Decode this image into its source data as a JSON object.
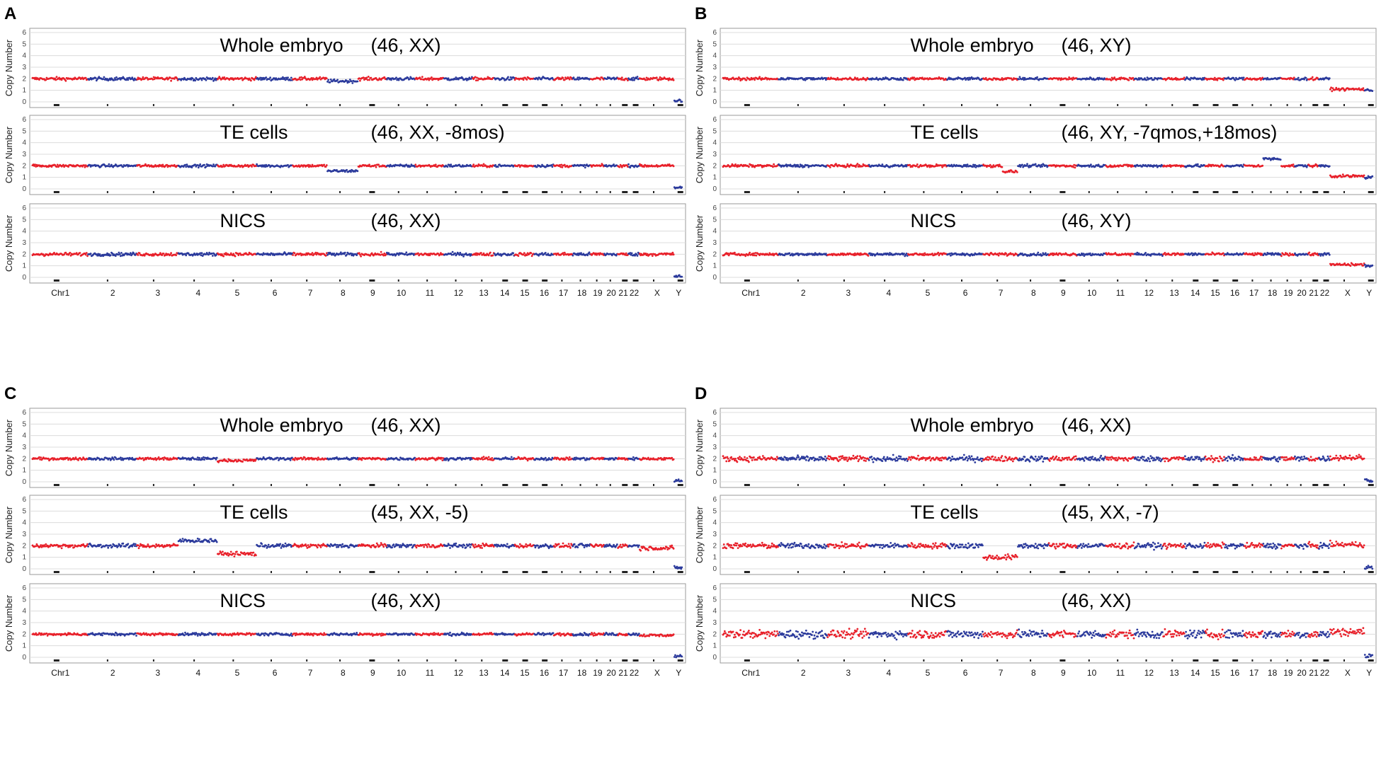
{
  "figure": {
    "panel_labels": [
      "A",
      "B",
      "C",
      "D"
    ],
    "colors": {
      "odd_chromosomes": "#e8202a",
      "even_chromosomes": "#2b3a9c",
      "grid": "#dcdcdc",
      "frame": "#999999"
    }
  },
  "chart_data": [
    {
      "panel": "A",
      "type": "scatter",
      "ylabel": "Copy Number",
      "ylim": [
        0,
        6
      ],
      "yticks": [
        "0",
        "1",
        "2",
        "3",
        "4",
        "5",
        "6"
      ],
      "chromosome_labels": [
        "Chr1",
        "2",
        "3",
        "4",
        "5",
        "6",
        "7",
        "8",
        "9",
        "10",
        "11",
        "12",
        "13",
        "14",
        "15",
        "16",
        "17",
        "18",
        "19",
        "20",
        "21",
        "22",
        "X",
        "Y"
      ],
      "plots": [
        {
          "title": "Whole embryo",
          "karyotype": "(46, XX)",
          "noise": 0.12,
          "segments": [
            {
              "chr": "8",
              "copy_number": 1.8
            },
            {
              "chr": "X",
              "copy_number": 2.0
            },
            {
              "chr": "Y",
              "copy_number": 0.1
            }
          ]
        },
        {
          "title": "TE cells",
          "karyotype": "(46, XX, -8mos)",
          "noise": 0.1,
          "segments": [
            {
              "chr": "8",
              "copy_number": 1.55
            },
            {
              "chr": "X",
              "copy_number": 2.0
            },
            {
              "chr": "Y",
              "copy_number": 0.1
            }
          ]
        },
        {
          "title": "NICS",
          "karyotype": "(46, XX)",
          "noise": 0.12,
          "segments": [
            {
              "chr": "X",
              "copy_number": 2.0
            },
            {
              "chr": "Y",
              "copy_number": 0.1
            }
          ]
        }
      ]
    },
    {
      "panel": "B",
      "type": "scatter",
      "ylabel": "Copy Number",
      "ylim": [
        0,
        6
      ],
      "yticks": [
        "0",
        "1",
        "2",
        "3",
        "4",
        "5",
        "6"
      ],
      "chromosome_labels": [
        "Chr1",
        "2",
        "3",
        "4",
        "5",
        "6",
        "7",
        "8",
        "9",
        "10",
        "11",
        "12",
        "13",
        "14",
        "15",
        "16",
        "17",
        "18",
        "19",
        "20",
        "21",
        "22",
        "X",
        "Y"
      ],
      "plots": [
        {
          "title": "Whole embryo",
          "karyotype": "(46, XY)",
          "noise": 0.1,
          "segments": [
            {
              "chr": "X",
              "copy_number": 1.1
            },
            {
              "chr": "Y",
              "copy_number": 1.0
            }
          ]
        },
        {
          "title": "TE cells",
          "karyotype": "(46, XY, -7qmos,+18mos)",
          "noise": 0.1,
          "segments": [
            {
              "chr": "7q",
              "copy_number": 1.5
            },
            {
              "chr": "18",
              "copy_number": 2.6
            },
            {
              "chr": "X",
              "copy_number": 1.1
            },
            {
              "chr": "Y",
              "copy_number": 1.0
            }
          ]
        },
        {
          "title": "NICS",
          "karyotype": "(46, XY)",
          "noise": 0.1,
          "segments": [
            {
              "chr": "X",
              "copy_number": 1.1
            },
            {
              "chr": "Y",
              "copy_number": 1.0
            }
          ]
        }
      ]
    },
    {
      "panel": "C",
      "type": "scatter",
      "ylabel": "Copy Number",
      "ylim": [
        0,
        6
      ],
      "yticks": [
        "0",
        "1",
        "2",
        "3",
        "4",
        "5",
        "6"
      ],
      "chromosome_labels": [
        "Chr1",
        "2",
        "3",
        "4",
        "5",
        "6",
        "7",
        "8",
        "9",
        "10",
        "11",
        "12",
        "13",
        "14",
        "15",
        "16",
        "17",
        "18",
        "19",
        "20",
        "21",
        "22",
        "X",
        "Y"
      ],
      "plots": [
        {
          "title": "Whole embryo",
          "karyotype": "(46, XX)",
          "noise": 0.1,
          "segments": [
            {
              "chr": "5",
              "copy_number": 1.85
            },
            {
              "chr": "X",
              "copy_number": 2.0
            },
            {
              "chr": "Y",
              "copy_number": 0.1
            }
          ]
        },
        {
          "title": "TE cells",
          "karyotype": "(45, XX, -5)",
          "noise": 0.15,
          "segments": [
            {
              "chr": "4",
              "copy_number": 2.45
            },
            {
              "chr": "5",
              "copy_number": 1.3
            },
            {
              "chr": "X",
              "copy_number": 1.8
            },
            {
              "chr": "Y",
              "copy_number": 0.1
            }
          ]
        },
        {
          "title": "NICS",
          "karyotype": "(46, XX)",
          "noise": 0.1,
          "segments": [
            {
              "chr": "X",
              "copy_number": 1.9
            },
            {
              "chr": "Y",
              "copy_number": 0.1
            }
          ]
        }
      ]
    },
    {
      "panel": "D",
      "type": "scatter",
      "ylabel": "Copy Number",
      "ylim": [
        0,
        6
      ],
      "yticks": [
        "0",
        "1",
        "2",
        "3",
        "4",
        "5",
        "6"
      ],
      "chromosome_labels": [
        "Chr1",
        "2",
        "3",
        "4",
        "5",
        "6",
        "7",
        "8",
        "9",
        "10",
        "11",
        "12",
        "13",
        "14",
        "15",
        "16",
        "17",
        "18",
        "19",
        "20",
        "21",
        "22",
        "X",
        "Y"
      ],
      "plots": [
        {
          "title": "Whole embryo",
          "karyotype": "(46, XX)",
          "noise": 0.2,
          "segments": [
            {
              "chr": "X",
              "copy_number": 2.1
            },
            {
              "chr": "Y",
              "copy_number": 0.1
            }
          ]
        },
        {
          "title": "TE cells",
          "karyotype": "(45, XX, -7)",
          "noise": 0.2,
          "segments": [
            {
              "chr": "7",
              "copy_number": 1.0
            },
            {
              "chr": "X",
              "copy_number": 2.1
            },
            {
              "chr": "Y",
              "copy_number": 0.1
            }
          ]
        },
        {
          "title": "NICS",
          "karyotype": "(46, XX)",
          "noise": 0.3,
          "segments": [
            {
              "chr": "X",
              "copy_number": 2.2
            },
            {
              "chr": "Y",
              "copy_number": 0.1
            }
          ]
        }
      ]
    }
  ]
}
